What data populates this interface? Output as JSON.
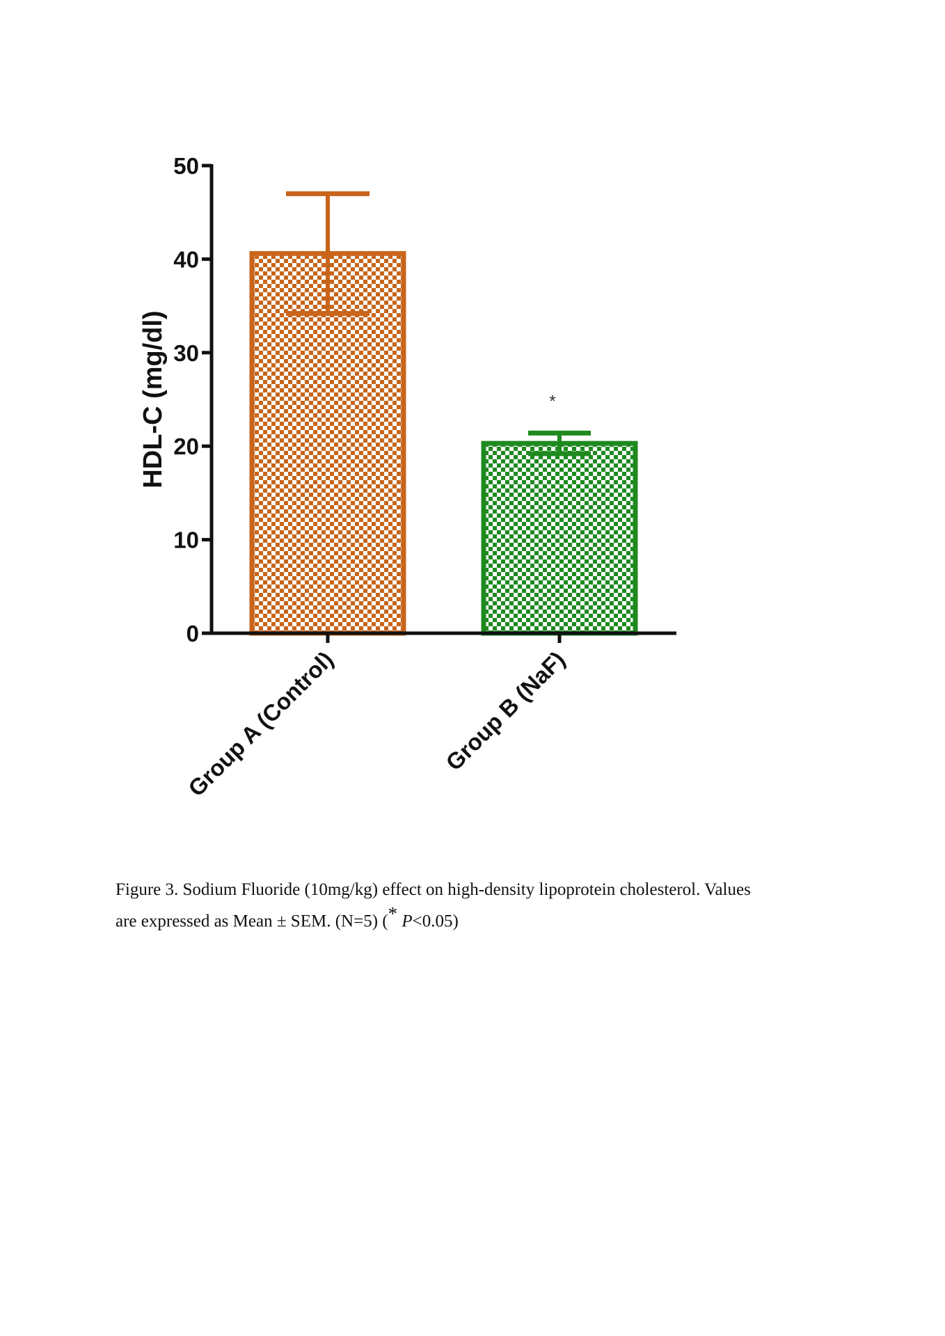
{
  "chart_data": {
    "type": "bar",
    "title": "",
    "xlabel": "",
    "ylabel": "HDL-C (mg/dl)",
    "ylim": [
      0,
      50
    ],
    "yticks": [
      0,
      10,
      20,
      30,
      40,
      50
    ],
    "categories": [
      "Group A (Control)",
      "Group B (NaF)"
    ],
    "values": [
      40.6,
      20.3
    ],
    "errors": [
      6.4,
      1.1
    ],
    "colors": [
      "#c8651b",
      "#1e8a1e"
    ],
    "pattern": "checkerboard",
    "annotations": [
      {
        "category": "Group B (NaF)",
        "text": "*"
      }
    ],
    "grid": false,
    "legend": "none"
  },
  "caption": {
    "line1": "Figure 3. Sodium Fluoride (10mg/kg) effect on high-density lipoprotein cholesterol. Values",
    "line2_start": "are expressed as Mean ± SEM. (N=5) (",
    "star": "*",
    "p_label": "P",
    "line2_end": "<0.05)"
  }
}
